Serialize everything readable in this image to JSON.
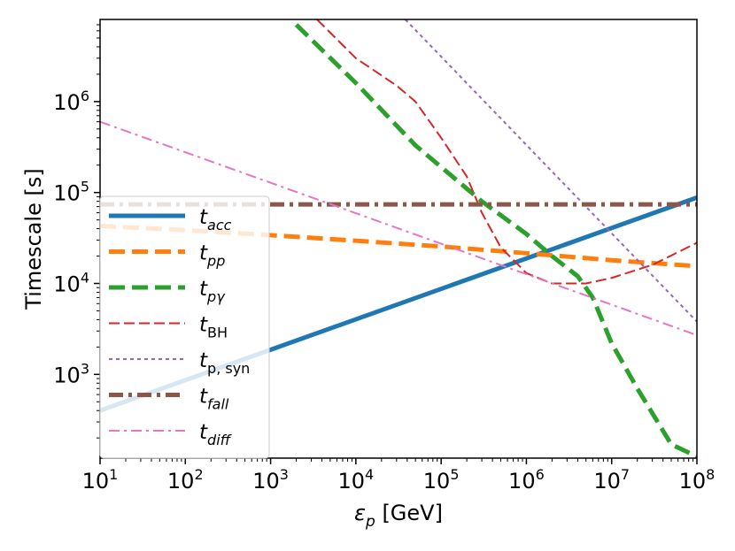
{
  "chart_data": {
    "type": "line",
    "xlabel": "ε_p [GeV]",
    "ylabel": "Timescale [s]",
    "xscale": "log",
    "yscale": "log",
    "xlim": [
      10,
      100000000
    ],
    "ylim": [
      120,
      8000000
    ],
    "x_ticks": [
      {
        "value": 10,
        "base": "10",
        "exp": "1"
      },
      {
        "value": 100,
        "base": "10",
        "exp": "2"
      },
      {
        "value": 1000,
        "base": "10",
        "exp": "3"
      },
      {
        "value": 10000,
        "base": "10",
        "exp": "4"
      },
      {
        "value": 100000,
        "base": "10",
        "exp": "5"
      },
      {
        "value": 1000000,
        "base": "10",
        "exp": "6"
      },
      {
        "value": 10000000,
        "base": "10",
        "exp": "7"
      },
      {
        "value": 100000000,
        "base": "10",
        "exp": "8"
      }
    ],
    "y_ticks": [
      {
        "value": 1000,
        "base": "10",
        "exp": "3"
      },
      {
        "value": 10000,
        "base": "10",
        "exp": "4"
      },
      {
        "value": 100000,
        "base": "10",
        "exp": "5"
      },
      {
        "value": 1000000,
        "base": "10",
        "exp": "6"
      }
    ],
    "grid": false,
    "legend_position": "lower-left",
    "series": [
      {
        "name": "t_acc",
        "label_main": "t",
        "label_sub": "acc",
        "color": "#1f77b4",
        "style": "solid",
        "width": 5,
        "x": [
          10,
          100000000
        ],
        "y": [
          400,
          88000
        ]
      },
      {
        "name": "t_pp",
        "label_main": "t",
        "label_sub": "pp",
        "color": "#ff7f0e",
        "style": "dashed",
        "width": 5,
        "x": [
          10,
          100,
          1000,
          10000,
          100000,
          1000000,
          10000000,
          100000000
        ],
        "y": [
          43000,
          38500,
          34000,
          29500,
          25500,
          21500,
          18000,
          15500
        ]
      },
      {
        "name": "t_pγ",
        "label_main": "t",
        "label_sub": "pγ",
        "color": "#2ca02c",
        "style": "dashed",
        "width": 5,
        "x": [
          2000,
          10000,
          50000,
          300000,
          1000000,
          2000000,
          4000000,
          6000000,
          10000000,
          20000000,
          50000000,
          100000000
        ],
        "y": [
          7000000,
          1600000,
          330000,
          80000,
          35000,
          20000,
          12000,
          7000,
          2200,
          700,
          170,
          125
        ]
      },
      {
        "name": "t_BH",
        "label_main": "t",
        "label_sub": "BH",
        "color": "#d62728",
        "style": "dashed",
        "width": 2,
        "x": [
          3500,
          10000,
          30000,
          50000,
          100000,
          200000,
          300000,
          500000,
          1000000,
          2000000,
          5000000,
          10000000,
          30000000,
          100000000
        ],
        "y": [
          8000000,
          3000000,
          1500000,
          1000000,
          400000,
          150000,
          60000,
          25000,
          13000,
          10000,
          10000,
          11500,
          16000,
          28000
        ]
      },
      {
        "name": "t_p,syn",
        "label_main": "t",
        "label_sub": "p, syn",
        "color": "#9467bd",
        "style": "dotted",
        "width": 2,
        "x": [
          38000,
          100000000
        ],
        "y": [
          8000000,
          3800
        ]
      },
      {
        "name": "t_fall",
        "label_main": "t",
        "label_sub": "fall",
        "color": "#8c564b",
        "style": "dashdot",
        "width": 5,
        "x": [
          10,
          100000000
        ],
        "y": [
          74000,
          74000
        ]
      },
      {
        "name": "t_diff",
        "label_main": "t",
        "label_sub": "diff",
        "color": "#e377c2",
        "style": "dashdot",
        "width": 2,
        "x": [
          10,
          100000000
        ],
        "y": [
          600000,
          2700
        ]
      }
    ]
  }
}
